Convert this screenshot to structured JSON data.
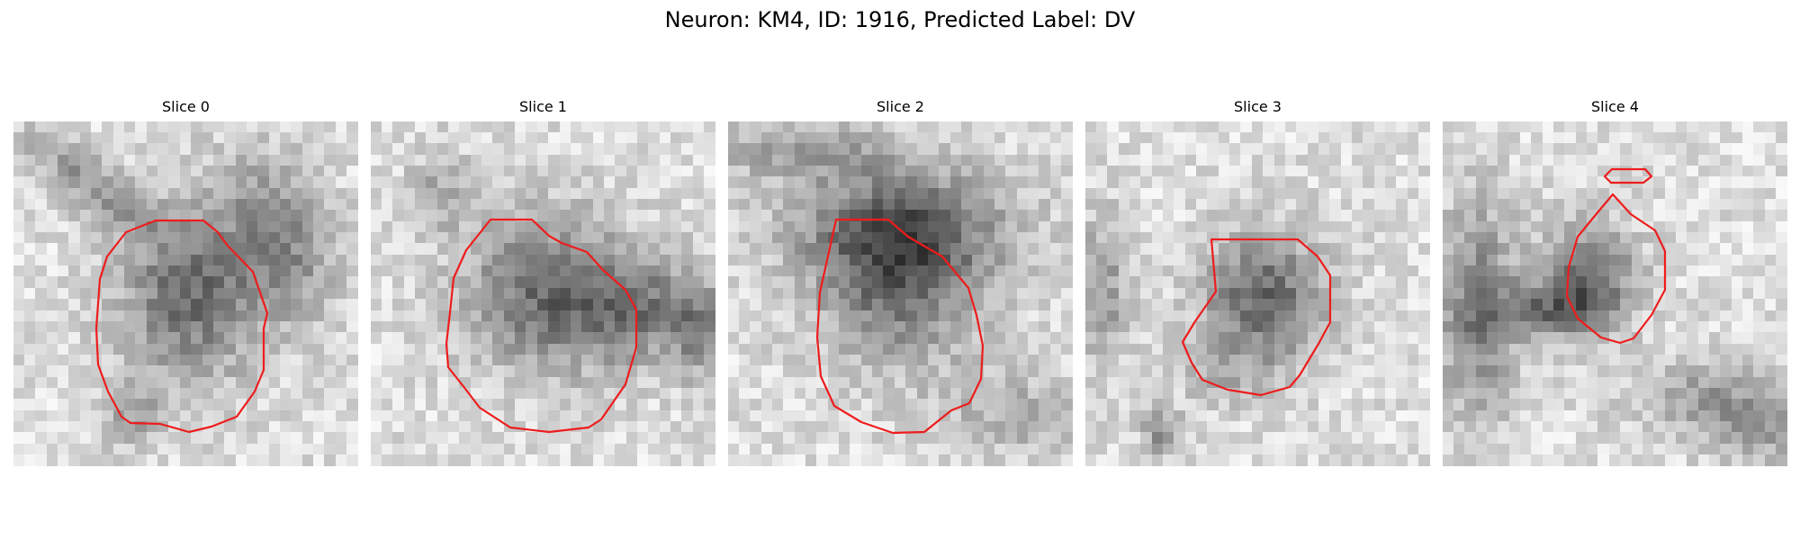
{
  "figure": {
    "suptitle": "Neuron: KM4, ID: 1916, Predicted Label: DV"
  },
  "panels": [
    {
      "title": "Slice 0"
    },
    {
      "title": "Slice 1"
    },
    {
      "title": "Slice 2"
    },
    {
      "title": "Slice 3"
    },
    {
      "title": "Slice 4"
    }
  ],
  "colors": {
    "contour": "#ee1c1c",
    "colormap": "grayscale"
  }
}
